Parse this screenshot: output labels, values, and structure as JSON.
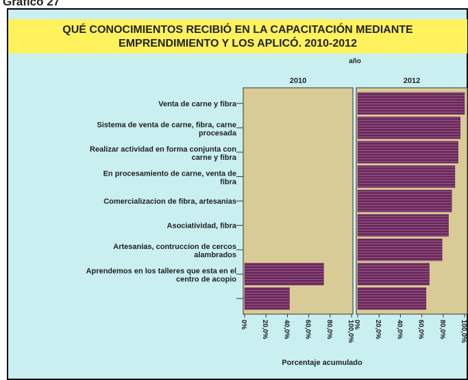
{
  "header": "Gráfico 27",
  "chart_data": {
    "type": "bar",
    "title": [
      "QUÉ CONOCIMIENTOS RECIBIÓ EN LA CAPACITACIÓN MEDIANTE",
      "EMPRENDIMIENTO Y LOS APLICÓ. 2010-2012"
    ],
    "facet_title": "año",
    "x_label": "Porcentaje acumulado",
    "orientation": "horizontal",
    "categories": [
      "Venta de carne y fibra",
      "Sistema de venta de carne, fibra, carne\nprocesada",
      "Realizar actividad en forma conjunta con\ncarne y fibra",
      "En procesamiento de carne, venta de\nfibra",
      "Comercializacion de fibra, artesanias",
      "Asociatividad, fibra",
      "Artesanias, contruccion de cercos\nalambrados",
      "Aprendemos en los talleres que esta en el\ncentro de acopio",
      null
    ],
    "series": [
      {
        "name": "2010",
        "color": "#6b2a5c",
        "values": [
          0,
          0,
          0,
          0,
          0,
          0,
          0,
          74,
          42
        ]
      },
      {
        "name": "2012",
        "color": "#6b2a5c",
        "values": [
          100,
          96,
          94,
          91,
          88,
          85,
          79,
          67,
          64
        ]
      }
    ],
    "xlim": [
      0,
      100
    ],
    "xticks": [
      {
        "value": 0,
        "label": "0%"
      },
      {
        "value": 20,
        "label": "20,0%"
      },
      {
        "value": 40,
        "label": "40,0%"
      },
      {
        "value": 60,
        "label": "60,0%"
      },
      {
        "value": 80,
        "label": "80,0%"
      },
      {
        "value": 100,
        "label": "100,0%"
      }
    ]
  }
}
